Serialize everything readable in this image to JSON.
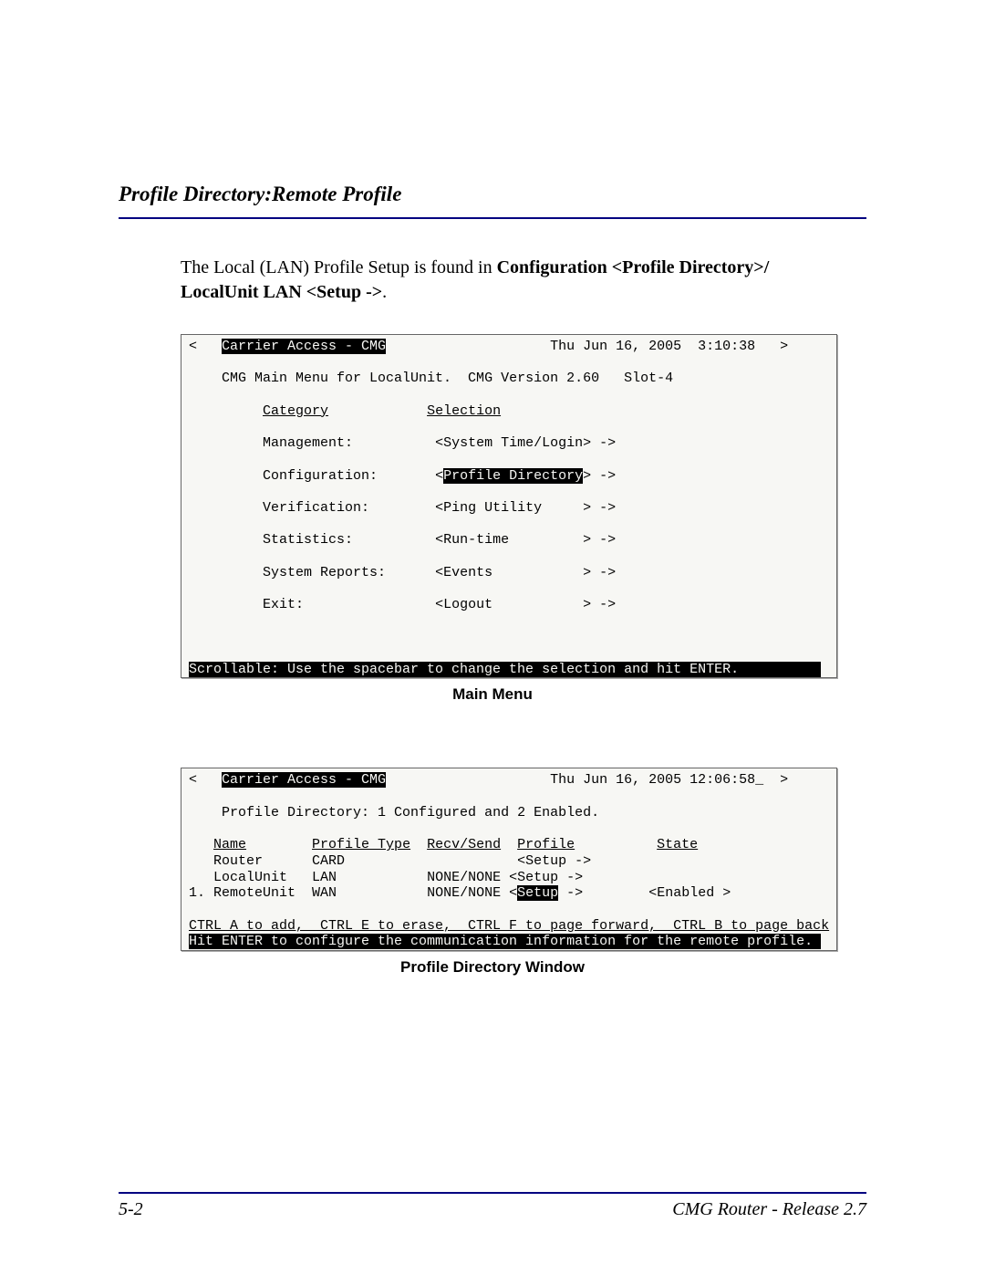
{
  "section_title": "Profile Directory:Remote Profile",
  "intro": {
    "line1_prefix": "The Local (LAN) Profile Setup is found in ",
    "line1_bold": "Configuration <Profile Directory>/",
    "line2_bold": "LocalUnit  LAN  <Setup ->",
    "line2_suffix": "."
  },
  "main_menu": {
    "header_left": "Carrier Access - CMG",
    "header_right": "Thu Jun 16, 2005  3:10:38",
    "subheader": "CMG Main Menu for LocalUnit.  CMG Version 2.60   Slot-4",
    "col1": "Category",
    "col2": "Selection",
    "rows": [
      {
        "cat": "Management:",
        "sel": "<System Time/Login> ->",
        "highlight": false
      },
      {
        "cat": "Configuration:",
        "sel_pre": "<",
        "sel_hl": "Profile Directory",
        "sel_post": "> ->",
        "highlight": true
      },
      {
        "cat": "Verification:",
        "sel": "<Ping Utility     > ->",
        "highlight": false
      },
      {
        "cat": "Statistics:",
        "sel": "<Run-time         > ->",
        "highlight": false
      },
      {
        "cat": "System Reports:",
        "sel": "<Events           > ->",
        "highlight": false
      },
      {
        "cat": "Exit:",
        "sel": "<Logout           > ->",
        "highlight": false
      }
    ],
    "status": "Scrollable: Use the spacebar to change the selection and hit ENTER.",
    "caption": "Main Menu"
  },
  "profile_dir": {
    "header_left": "Carrier Access - CMG",
    "header_right": "Thu Jun 16, 2005 12:06:58_",
    "subheader": "Profile Directory: 1 Configured and 2 Enabled.",
    "cols": {
      "name": "Name",
      "type": "Profile Type",
      "rs": "Recv/Send",
      "prof": "Profile",
      "state": "State"
    },
    "rows": [
      {
        "idx": "   ",
        "name": "Router",
        "type": "CARD",
        "rs": "",
        "prof": "<Setup ->",
        "state": "",
        "hl": false
      },
      {
        "idx": "   ",
        "name": "LocalUnit",
        "type": "LAN",
        "rs": "NONE/NONE",
        "prof": "<Setup ->",
        "state": "",
        "hl": false
      },
      {
        "idx": "1. ",
        "name": "RemoteUnit",
        "type": "WAN",
        "rs": "NONE/NONE",
        "prof_pre": "<",
        "prof_hl": "Setup",
        "prof_post": " ->",
        "state": "<Enabled >",
        "hl": true
      }
    ],
    "help1": "CTRL A to add,  CTRL E to erase,  CTRL F to page forward,  CTRL B to page back",
    "help2": "Hit ENTER to configure the communication information for the remote profile.",
    "caption": "Profile Directory Window"
  },
  "footer": {
    "page": "5-2",
    "release": "CMG Router - Release 2.7"
  },
  "colors": {
    "rule": "#000080",
    "term_bg": "#f7f7f4",
    "highlight_bg": "#000000",
    "highlight_fg": "#f7f7f4"
  }
}
